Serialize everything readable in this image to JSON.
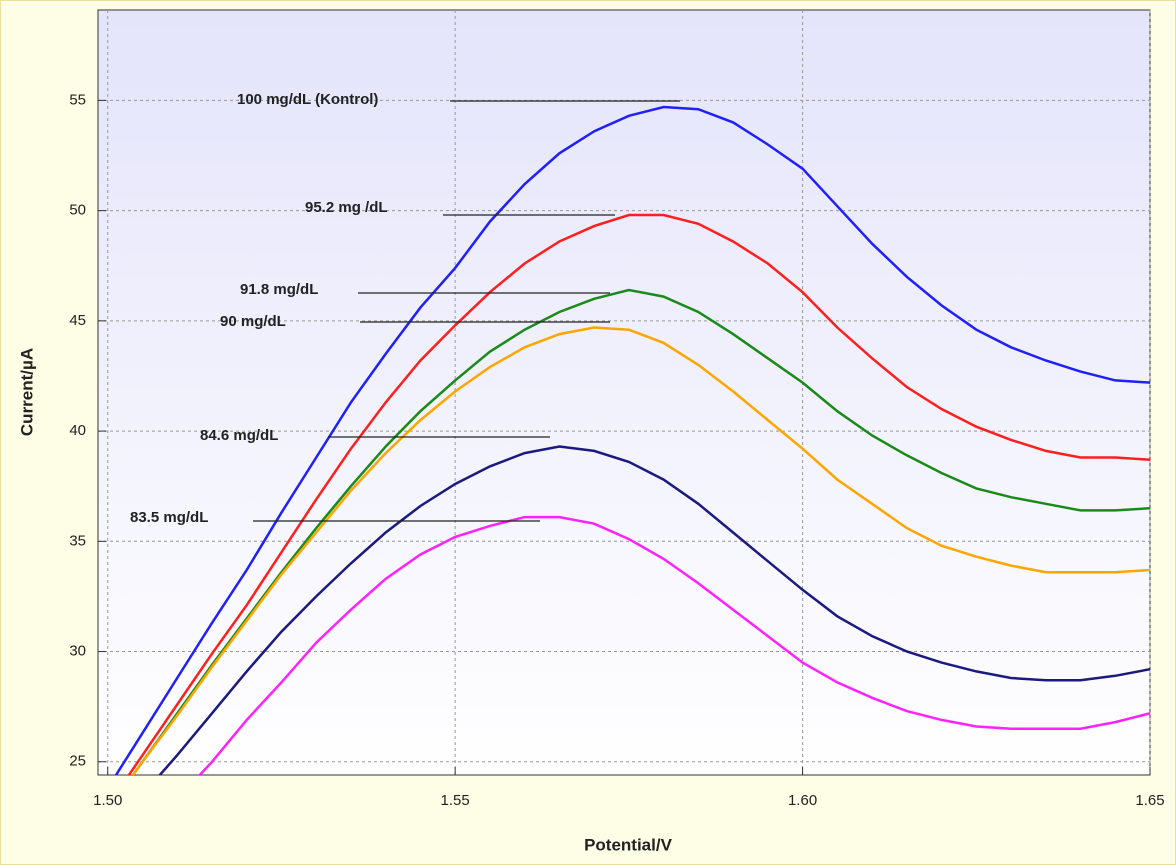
{
  "chart_data": {
    "type": "line",
    "x_label": "Potential/V",
    "y_label": "Current/µA",
    "x": [
      1.5,
      1.505,
      1.51,
      1.515,
      1.52,
      1.525,
      1.53,
      1.535,
      1.54,
      1.545,
      1.55,
      1.555,
      1.56,
      1.565,
      1.57,
      1.575,
      1.58,
      1.585,
      1.59,
      1.595,
      1.6,
      1.605,
      1.61,
      1.615,
      1.62,
      1.625,
      1.63,
      1.635,
      1.64,
      1.645,
      1.65
    ],
    "series": [
      {
        "name": "100 mg/dL (Kontrol)",
        "color": "#1f1fff",
        "values": [
          23.8,
          26.3,
          28.8,
          31.3,
          33.7,
          36.3,
          38.8,
          41.3,
          43.5,
          45.6,
          47.4,
          49.5,
          51.2,
          52.6,
          53.6,
          54.3,
          54.7,
          54.6,
          54.0,
          53.0,
          51.9,
          50.2,
          48.5,
          47.0,
          45.7,
          44.6,
          43.8,
          43.2,
          42.7,
          42.3,
          42.2
        ]
      },
      {
        "name": "95.2 mg /dL",
        "color": "#ff1f1f",
        "values": [
          23.0,
          25.3,
          27.6,
          29.9,
          32.1,
          34.5,
          36.9,
          39.2,
          41.3,
          43.2,
          44.8,
          46.3,
          47.6,
          48.6,
          49.3,
          49.8,
          49.8,
          49.4,
          48.6,
          47.6,
          46.3,
          44.7,
          43.3,
          42.0,
          41.0,
          40.2,
          39.6,
          39.1,
          38.8,
          38.8,
          38.7
        ]
      },
      {
        "name": "91.8 mg/dL",
        "color": "#1a8a1a",
        "values": [
          22.8,
          25.0,
          27.2,
          29.4,
          31.5,
          33.6,
          35.6,
          37.5,
          39.3,
          40.9,
          42.3,
          43.6,
          44.6,
          45.4,
          46.0,
          46.4,
          46.1,
          45.4,
          44.4,
          43.3,
          42.2,
          40.9,
          39.8,
          38.9,
          38.1,
          37.4,
          37.0,
          36.7,
          36.4,
          36.4,
          36.5
        ]
      },
      {
        "name": "90 mg/dL",
        "color": "#ffa500",
        "values": [
          22.8,
          25.0,
          27.1,
          29.3,
          31.4,
          33.5,
          35.4,
          37.3,
          39.0,
          40.5,
          41.8,
          42.9,
          43.8,
          44.4,
          44.7,
          44.6,
          44.0,
          43.0,
          41.8,
          40.5,
          39.2,
          37.8,
          36.7,
          35.6,
          34.8,
          34.3,
          33.9,
          33.6,
          33.6,
          33.6,
          33.7
        ]
      },
      {
        "name": "84.6 mg/dL",
        "color": "#1a1a80",
        "values": [
          21.6,
          23.5,
          25.3,
          27.2,
          29.1,
          30.9,
          32.5,
          34.0,
          35.4,
          36.6,
          37.6,
          38.4,
          39.0,
          39.3,
          39.1,
          38.6,
          37.8,
          36.7,
          35.4,
          34.1,
          32.8,
          31.6,
          30.7,
          30.0,
          29.5,
          29.1,
          28.8,
          28.7,
          28.7,
          28.9,
          29.2
        ]
      },
      {
        "name": "83.5 mg/dL",
        "color": "#ff22ff",
        "values": [
          20.5,
          21.9,
          23.3,
          25.0,
          26.9,
          28.6,
          30.4,
          31.9,
          33.3,
          34.4,
          35.2,
          35.7,
          36.1,
          36.1,
          35.8,
          35.1,
          34.2,
          33.1,
          31.9,
          30.7,
          29.5,
          28.6,
          27.9,
          27.3,
          26.9,
          26.6,
          26.5,
          26.5,
          26.5,
          26.8,
          27.2
        ]
      }
    ],
    "xlim": [
      1.4986,
      1.65
    ],
    "ylim": [
      24.4,
      59.1
    ],
    "xticks": [
      {
        "value": 1.5,
        "label": "1.50"
      },
      {
        "value": 1.55,
        "label": "1.55"
      },
      {
        "value": 1.6,
        "label": "1.60"
      },
      {
        "value": 1.65,
        "label": "1.65"
      }
    ],
    "yticks": [
      25,
      30,
      35,
      40,
      45,
      50,
      55
    ],
    "grid": true
  }
}
